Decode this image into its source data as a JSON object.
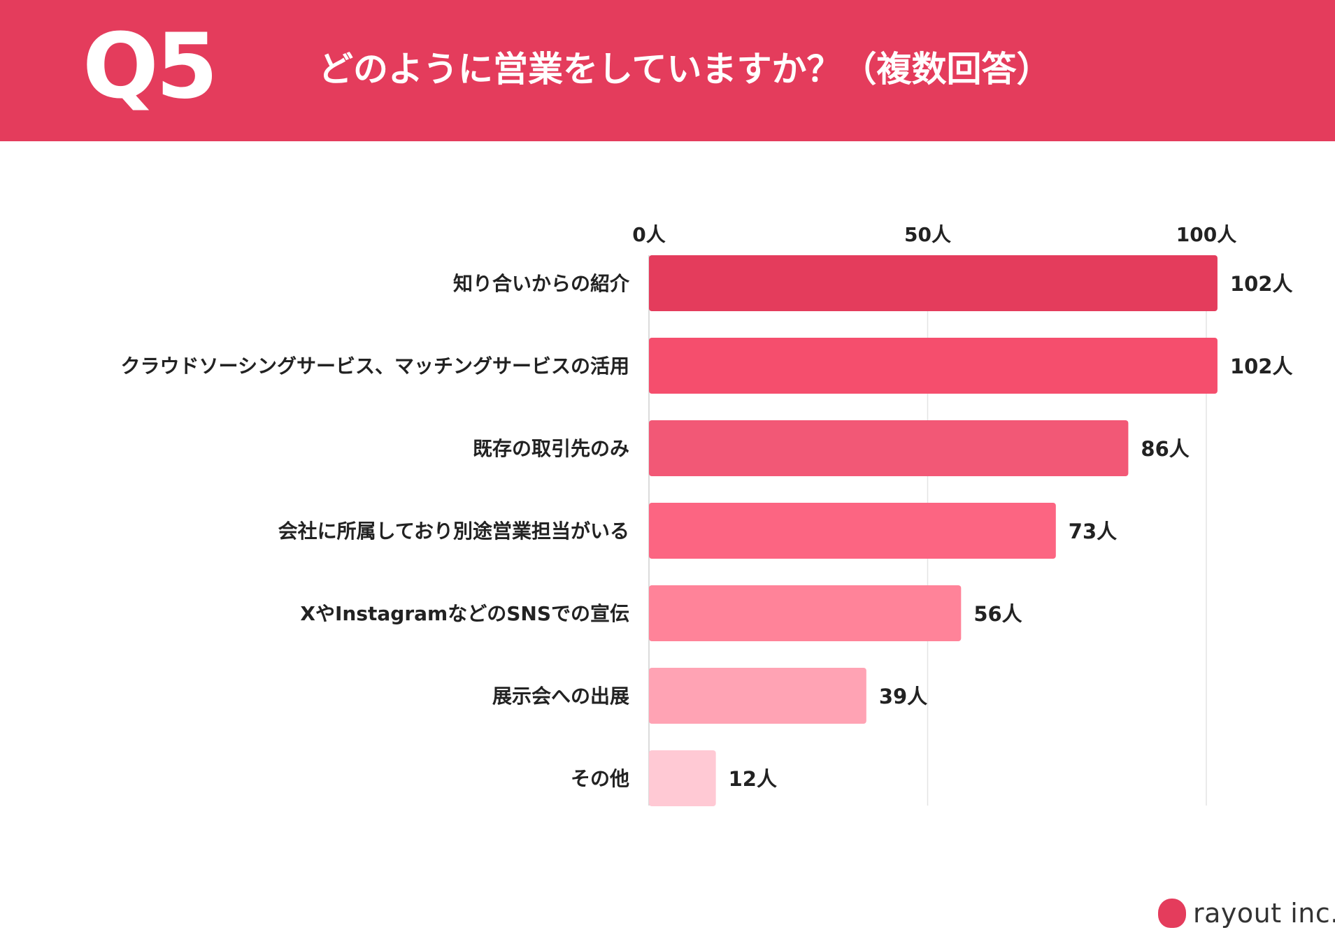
{
  "header": {
    "question_no": "Q5",
    "title": "どのように営業をしていますか？（複数回答）"
  },
  "chart_data": {
    "type": "bar",
    "orientation": "horizontal",
    "categories": [
      "知り合いからの紹介",
      "クラウドソーシングサービス、マッチングサービスの活用",
      "既存の取引先のみ",
      "会社に所属しており別途営業担当がいる",
      "XやInstagramなどのSNSでの宣伝",
      "展示会への出展",
      "その他"
    ],
    "values": [
      102,
      102,
      86,
      73,
      56,
      39,
      12
    ],
    "value_labels": [
      "102人",
      "102人",
      "86人",
      "73人",
      "56人",
      "39人",
      "12人"
    ],
    "xlim": [
      0,
      100
    ],
    "ticks": [
      {
        "value": 0,
        "label": "0人"
      },
      {
        "value": 50,
        "label": "50人"
      },
      {
        "value": 100,
        "label": "100人"
      }
    ],
    "tick_position": "top",
    "grid": true,
    "bar_colors": [
      "#e43c5c",
      "#f54e6d",
      "#f25876",
      "#fc6582",
      "#ff8399",
      "#ffa3b4",
      "#ffc9d4"
    ]
  },
  "footer": {
    "logo_text": "rayout inc."
  }
}
